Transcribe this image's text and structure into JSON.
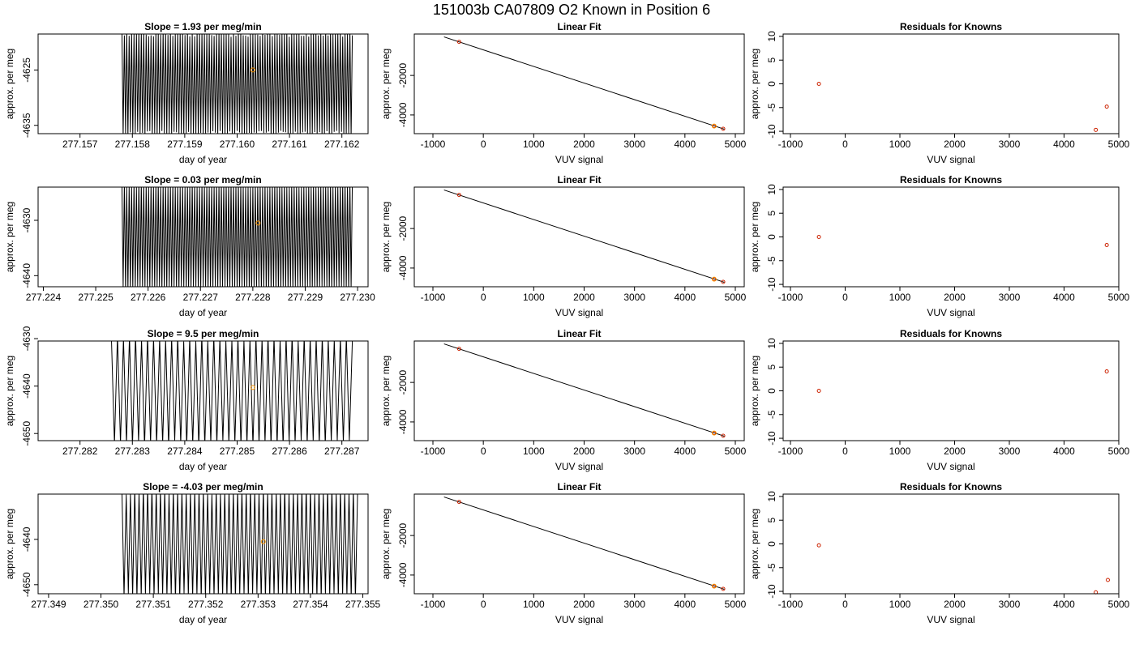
{
  "title": "151003b     CA07809   O2 Known in Position  6",
  "colors": {
    "frame": "#000000",
    "trace": "#000000",
    "fit_line": "#000000",
    "marker": "#cc2200",
    "highlight": "#ff9900"
  },
  "panels": [
    {
      "time": {
        "title": "Slope =  1.93  per meg/min",
        "xlabel": "day of year",
        "ylabel": "approx. per meg",
        "xticks": [
          "277.157",
          "277.158",
          "277.159",
          "277.160",
          "277.161",
          "277.162"
        ],
        "yticks": [
          "-4625",
          "-4635"
        ]
      },
      "fit": {
        "title": "Linear Fit",
        "xlabel": "VUV signal",
        "ylabel": "approx. per meg",
        "xticks": [
          "-1000",
          "0",
          "1000",
          "2000",
          "3000",
          "4000",
          "5000"
        ],
        "yticks": [
          "-2000",
          "-4000"
        ]
      },
      "resid": {
        "title": "Residuals for Knowns",
        "xlabel": "VUV signal",
        "ylabel": "approx. per meg",
        "xticks": [
          "-1000",
          "0",
          "1000",
          "2000",
          "3000",
          "4000",
          "5000"
        ],
        "yticks": [
          "10",
          "5",
          "0",
          "-5",
          "-10"
        ]
      }
    },
    {
      "time": {
        "title": "Slope =  0.03  per meg/min",
        "xlabel": "day of year",
        "ylabel": "approx. per meg",
        "xticks": [
          "277.224",
          "277.225",
          "277.226",
          "277.227",
          "277.228",
          "277.229",
          "277.230"
        ],
        "yticks": [
          "-4630",
          "-4640"
        ]
      },
      "fit": {
        "title": "Linear Fit",
        "xlabel": "VUV signal",
        "ylabel": "approx. per meg",
        "xticks": [
          "-1000",
          "0",
          "1000",
          "2000",
          "3000",
          "4000",
          "5000"
        ],
        "yticks": [
          "-2000",
          "-4000"
        ]
      },
      "resid": {
        "title": "Residuals for Knowns",
        "xlabel": "VUV signal",
        "ylabel": "approx. per meg",
        "xticks": [
          "-1000",
          "0",
          "1000",
          "2000",
          "3000",
          "4000",
          "5000"
        ],
        "yticks": [
          "10",
          "5",
          "0",
          "-5",
          "-10"
        ]
      }
    },
    {
      "time": {
        "title": "Slope =  9.5  per meg/min",
        "xlabel": "day of year",
        "ylabel": "approx. per meg",
        "xticks": [
          "277.282",
          "277.283",
          "277.284",
          "277.285",
          "277.286",
          "277.287"
        ],
        "yticks": [
          "-4630",
          "-4640",
          "-4650"
        ]
      },
      "fit": {
        "title": "Linear Fit",
        "xlabel": "VUV signal",
        "ylabel": "approx. per meg",
        "xticks": [
          "-1000",
          "0",
          "1000",
          "2000",
          "3000",
          "4000",
          "5000"
        ],
        "yticks": [
          "-2000",
          "-4000"
        ]
      },
      "resid": {
        "title": "Residuals for Knowns",
        "xlabel": "VUV signal",
        "ylabel": "approx. per meg",
        "xticks": [
          "-1000",
          "0",
          "1000",
          "2000",
          "3000",
          "4000",
          "5000"
        ],
        "yticks": [
          "10",
          "5",
          "0",
          "-5",
          "-10"
        ]
      }
    },
    {
      "time": {
        "title": "Slope =  -4.03  per meg/min",
        "xlabel": "day of year",
        "ylabel": "approx. per meg",
        "xticks": [
          "277.349",
          "277.350",
          "277.351",
          "277.352",
          "277.353",
          "277.354",
          "277.355"
        ],
        "yticks": [
          "-4640",
          "-4650"
        ]
      },
      "fit": {
        "title": "Linear Fit",
        "xlabel": "VUV signal",
        "ylabel": "approx. per meg",
        "xticks": [
          "-1000",
          "0",
          "1000",
          "2000",
          "3000",
          "4000",
          "5000"
        ],
        "yticks": [
          "-2000",
          "-4000"
        ]
      },
      "resid": {
        "title": "Residuals for Knowns",
        "xlabel": "VUV signal",
        "ylabel": "approx. per meg",
        "xticks": [
          "-1000",
          "0",
          "1000",
          "2000",
          "3000",
          "4000",
          "5000"
        ],
        "yticks": [
          "10",
          "5",
          "0",
          "-5",
          "-10"
        ]
      }
    }
  ],
  "chart_data": [
    {
      "type": "line",
      "title": "Slope =  1.93  per meg/min",
      "xlabel": "day of year",
      "ylabel": "approx. per meg",
      "xlim": [
        277.1562,
        277.1625
      ],
      "ylim": [
        -4636.5,
        -4618.5
      ],
      "trace_start": 277.1578,
      "trace_end": 277.1622,
      "band": [
        -4636,
        -4619
      ],
      "oscillations": 95,
      "highlight_point": {
        "x": 277.1603,
        "y": -4625
      }
    },
    {
      "type": "scatter",
      "title": "Linear Fit",
      "xlabel": "VUV signal",
      "ylabel": "approx. per meg",
      "xlim": [
        -1000,
        5000
      ],
      "ylim": [
        -4700,
        0
      ],
      "points": [
        [
          -480,
          -300
        ],
        [
          4580,
          -4560
        ],
        [
          4760,
          -4700
        ]
      ],
      "fit_line": [
        [
          -780,
          -50
        ],
        [
          4780,
          -4720
        ]
      ]
    },
    {
      "type": "scatter",
      "title": "Residuals for Knowns",
      "xlabel": "VUV signal",
      "ylabel": "approx. per meg",
      "xlim": [
        -1000,
        5000
      ],
      "ylim": [
        -10,
        10
      ],
      "points": [
        [
          -480,
          0
        ],
        [
          4580,
          -9.7
        ],
        [
          4780,
          -4.8
        ]
      ]
    },
    {
      "type": "line",
      "title": "Slope =  0.03  per meg/min",
      "xlabel": "day of year",
      "ylabel": "approx. per meg",
      "xlim": [
        277.2239,
        277.2302
      ],
      "ylim": [
        -4642,
        -4624
      ],
      "trace_start": 277.2255,
      "trace_end": 277.2299,
      "band": [
        -4642,
        -4624
      ],
      "oscillations": 95,
      "highlight_point": {
        "x": 277.2281,
        "y": -4630.5
      }
    },
    {
      "type": "scatter",
      "title": "Linear Fit",
      "xlabel": "VUV signal",
      "ylabel": "approx. per meg",
      "xlim": [
        -1000,
        5000
      ],
      "ylim": [
        -4700,
        0
      ],
      "points": [
        [
          -480,
          -300
        ],
        [
          4580,
          -4560
        ],
        [
          4760,
          -4700
        ]
      ],
      "fit_line": [
        [
          -780,
          -50
        ],
        [
          4780,
          -4720
        ]
      ]
    },
    {
      "type": "scatter",
      "title": "Residuals for Knowns",
      "xlabel": "VUV signal",
      "ylabel": "approx. per meg",
      "xlim": [
        -1000,
        5000
      ],
      "ylim": [
        -10,
        10
      ],
      "points": [
        [
          -480,
          0
        ],
        [
          4780,
          -1.7
        ]
      ]
    },
    {
      "type": "line",
      "title": "Slope =  9.5  per meg/min",
      "xlabel": "day of year",
      "ylabel": "approx. per meg",
      "xlim": [
        277.2812,
        277.2875
      ],
      "ylim": [
        -4651.5,
        -4630.5
      ],
      "trace_start": 277.2826,
      "trace_end": 277.2872,
      "band": [
        -4651.5,
        -4630.5
      ],
      "oscillations": 40,
      "highlight_point": {
        "x": 277.2853,
        "y": -4640.3
      }
    },
    {
      "type": "scatter",
      "title": "Linear Fit",
      "xlabel": "VUV signal",
      "ylabel": "approx. per meg",
      "xlim": [
        -1000,
        5000
      ],
      "ylim": [
        -4700,
        0
      ],
      "points": [
        [
          -480,
          -300
        ],
        [
          4580,
          -4560
        ],
        [
          4760,
          -4700
        ]
      ],
      "fit_line": [
        [
          -780,
          -50
        ],
        [
          4780,
          -4720
        ]
      ]
    },
    {
      "type": "scatter",
      "title": "Residuals for Knowns",
      "xlabel": "VUV signal",
      "ylabel": "approx. per meg",
      "xlim": [
        -1000,
        5000
      ],
      "ylim": [
        -10,
        10
      ],
      "points": [
        [
          -480,
          0
        ],
        [
          4780,
          4.1
        ]
      ]
    },
    {
      "type": "line",
      "title": "Slope =  -4.03  per meg/min",
      "xlabel": "day of year",
      "ylabel": "approx. per meg",
      "xlim": [
        277.3488,
        277.3551
      ],
      "ylim": [
        -4652,
        -4630
      ],
      "trace_start": 277.3504,
      "trace_end": 277.3549,
      "band": [
        -4652,
        -4630
      ],
      "oscillations": 55,
      "highlight_point": {
        "x": 277.3531,
        "y": -4640.5
      }
    },
    {
      "type": "scatter",
      "title": "Linear Fit",
      "xlabel": "VUV signal",
      "ylabel": "approx. per meg",
      "xlim": [
        -1000,
        5000
      ],
      "ylim": [
        -4700,
        0
      ],
      "points": [
        [
          -480,
          -300
        ],
        [
          4580,
          -4560
        ],
        [
          4760,
          -4700
        ]
      ],
      "fit_line": [
        [
          -780,
          -50
        ],
        [
          4780,
          -4720
        ]
      ]
    },
    {
      "type": "scatter",
      "title": "Residuals for Knowns",
      "xlabel": "VUV signal",
      "ylabel": "approx. per meg",
      "xlim": [
        -1000,
        5000
      ],
      "ylim": [
        -10,
        10
      ],
      "points": [
        [
          -480,
          -0.3
        ],
        [
          4580,
          -10.2
        ],
        [
          4800,
          -7.6
        ]
      ]
    }
  ]
}
